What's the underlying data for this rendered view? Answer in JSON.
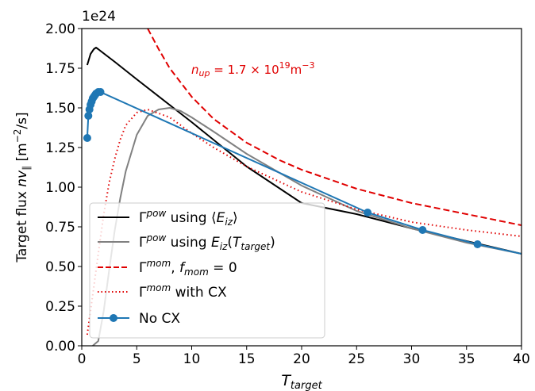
{
  "chart_data": {
    "type": "line",
    "offset_text": "1e24",
    "xlabel": "T_target",
    "ylabel": "Target flux nv_∥ [m⁻²/s]",
    "xlim": [
      0,
      40
    ],
    "ylim": [
      0,
      2.0
    ],
    "x_ticks": [
      0,
      5,
      10,
      15,
      20,
      25,
      30,
      35,
      40
    ],
    "y_ticks": [
      "0.00",
      "0.25",
      "0.50",
      "0.75",
      "1.00",
      "1.25",
      "1.50",
      "1.75",
      "2.00"
    ],
    "annotation": {
      "text": "n_up = 1.7 × 10¹⁹ m⁻³",
      "x": 10,
      "y": 1.72
    },
    "legend_position": "lower-left",
    "series": [
      {
        "name": "Γ^pow using ⟨E_iz⟩",
        "color": "#000000",
        "style": "solid",
        "x": [
          0.5,
          0.8,
          1.1,
          1.3,
          1.5,
          3,
          5,
          10,
          15,
          20,
          25,
          30,
          35,
          40
        ],
        "y": [
          1.77,
          1.84,
          1.87,
          1.88,
          1.87,
          1.79,
          1.68,
          1.41,
          1.13,
          0.9,
          0.83,
          0.74,
          0.66,
          0.58
        ]
      },
      {
        "name": "Γ^pow using E_iz(T_target)",
        "color": "#808080",
        "style": "solid",
        "x": [
          1.0,
          1.5,
          2,
          2.5,
          3,
          3.5,
          4,
          5,
          6,
          7,
          8,
          9,
          10,
          12,
          15,
          20,
          25,
          30,
          35,
          40
        ],
        "y": [
          0.0,
          0.03,
          0.22,
          0.48,
          0.73,
          0.93,
          1.1,
          1.33,
          1.45,
          1.49,
          1.5,
          1.48,
          1.44,
          1.35,
          1.21,
          1.01,
          0.85,
          0.74,
          0.65,
          0.58
        ]
      },
      {
        "name": "Γ^mom, f_mom = 0",
        "color": "#e00000",
        "style": "dashed",
        "x": [
          6,
          7,
          8,
          10,
          12,
          15,
          18,
          20,
          25,
          30,
          35,
          40
        ],
        "y": [
          2.0,
          1.87,
          1.75,
          1.57,
          1.43,
          1.28,
          1.17,
          1.11,
          0.99,
          0.9,
          0.83,
          0.76
        ]
      },
      {
        "name": "Γ^mom with CX",
        "color": "#e00000",
        "style": "dotted",
        "x": [
          0.5,
          1,
          1.5,
          2,
          2.5,
          3,
          3.5,
          4,
          5,
          6,
          8,
          10,
          12,
          15,
          20,
          25,
          30,
          35,
          40
        ],
        "y": [
          0.07,
          0.32,
          0.58,
          0.83,
          1.03,
          1.18,
          1.3,
          1.39,
          1.47,
          1.49,
          1.44,
          1.34,
          1.25,
          1.13,
          0.97,
          0.86,
          0.78,
          0.73,
          0.69
        ]
      },
      {
        "name": "No CX",
        "color": "#1f77b4",
        "style": "solid-markers",
        "x": [
          0.5,
          0.6,
          0.7,
          0.8,
          0.9,
          1.0,
          1.1,
          1.2,
          1.3,
          1.5,
          1.7,
          26,
          31,
          36,
          40
        ],
        "y": [
          1.31,
          1.45,
          1.49,
          1.52,
          1.54,
          1.56,
          1.57,
          1.58,
          1.59,
          1.6,
          1.6,
          0.84,
          0.73,
          0.64,
          0.58
        ],
        "markers": [
          0,
          1,
          2,
          3,
          4,
          5,
          6,
          7,
          8,
          9,
          10,
          11,
          12,
          13
        ]
      }
    ]
  }
}
